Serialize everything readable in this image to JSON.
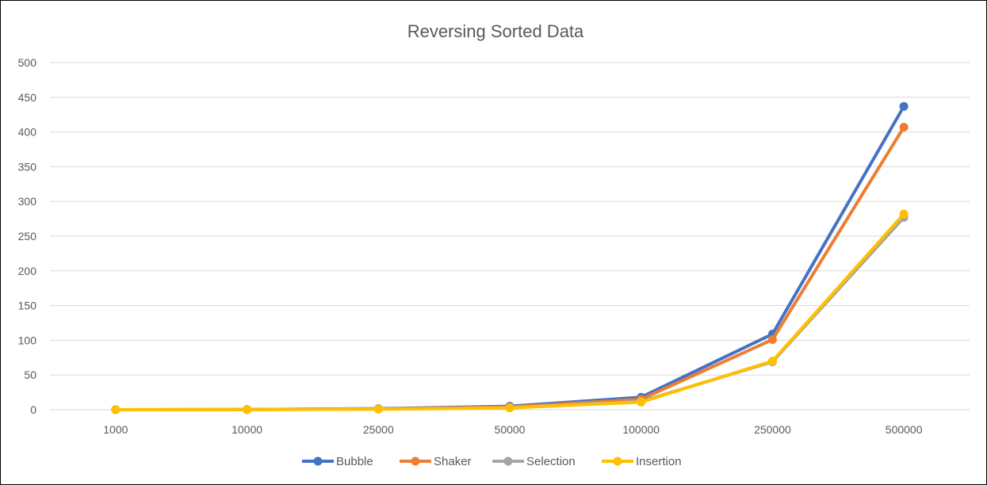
{
  "chart_data": {
    "type": "line",
    "title": "Reversing Sorted Data",
    "xlabel": "",
    "ylabel": "",
    "categories": [
      "1000",
      "10000",
      "25000",
      "50000",
      "100000",
      "250000",
      "500000"
    ],
    "ylim": [
      0,
      500
    ],
    "yticks": [
      0,
      50,
      100,
      150,
      200,
      250,
      300,
      350,
      400,
      450,
      500
    ],
    "grid": true,
    "legend": "bottom",
    "series": [
      {
        "name": "Bubble",
        "color": "#4472c4",
        "values": [
          0,
          0.3,
          1.5,
          5,
          18,
          109,
          437
        ]
      },
      {
        "name": "Shaker",
        "color": "#ed7d31",
        "values": [
          0,
          0.3,
          1.2,
          4,
          15,
          101,
          407
        ]
      },
      {
        "name": "Selection",
        "color": "#a5a5a5",
        "values": [
          0,
          0.2,
          1,
          3,
          12,
          69,
          277
        ]
      },
      {
        "name": "Insertion",
        "color": "#ffc000",
        "values": [
          0,
          0.2,
          0.8,
          2.5,
          11,
          70,
          282
        ]
      }
    ]
  }
}
